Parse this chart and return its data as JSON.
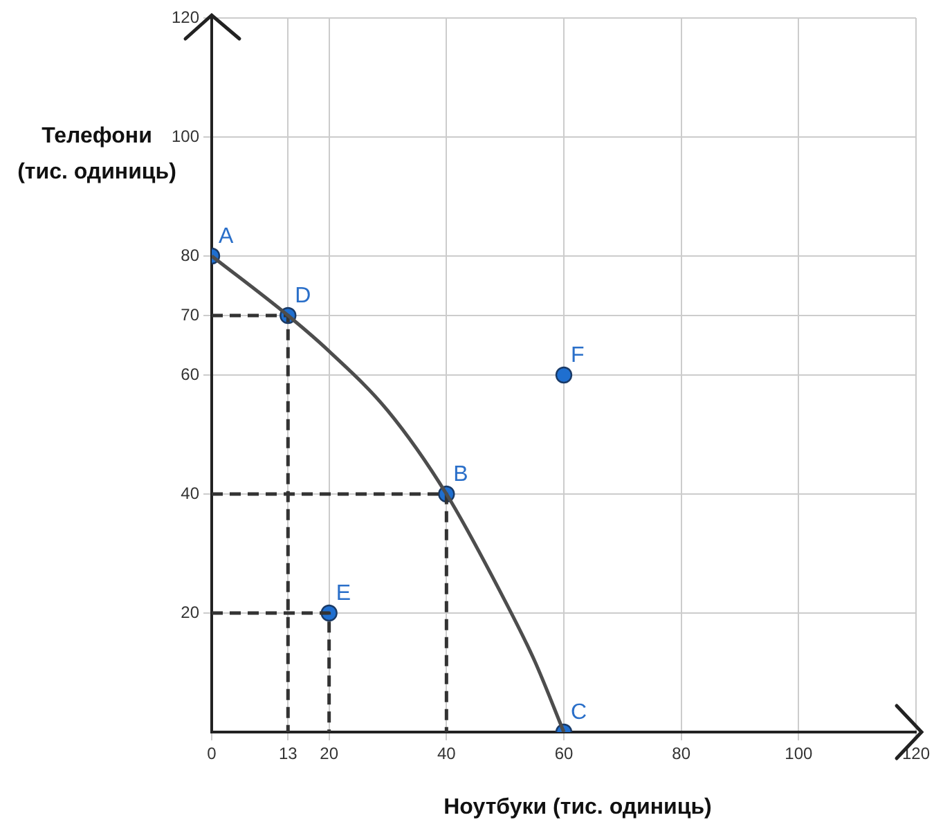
{
  "chart_data": {
    "type": "line",
    "xlabel": "Ноутбуки (тис. одиниць)",
    "ylabel": "Телефони (тис. одиниць)",
    "xlim": [
      0,
      120
    ],
    "ylim": [
      0,
      120
    ],
    "xticks": [
      0,
      13,
      20,
      40,
      60,
      80,
      100,
      120
    ],
    "yticks": [
      20,
      40,
      60,
      70,
      80,
      100,
      120
    ],
    "grid": true,
    "legend": false,
    "series": [
      {
        "color": "#4d4d4d",
        "x": [
          0,
          13,
          20,
          30,
          40,
          50,
          55,
          60
        ],
        "values": [
          80,
          70,
          64,
          54,
          40,
          22,
          12,
          0
        ],
        "marker": "none",
        "line_style": "solid"
      },
      {
        "color": "#333333",
        "x": [
          0,
          13,
          13
        ],
        "values": [
          70,
          70,
          0
        ],
        "marker": "none",
        "line_style": "dashed"
      },
      {
        "color": "#333333",
        "x": [
          0,
          40,
          40
        ],
        "values": [
          40,
          40,
          0
        ],
        "marker": "none",
        "line_style": "dashed"
      },
      {
        "color": "#333333",
        "x": [
          0,
          20,
          20
        ],
        "values": [
          20,
          20,
          0
        ],
        "marker": "none",
        "line_style": "dashed"
      },
      {
        "type": "scatter",
        "color": "#1f6fd0",
        "x": [
          0,
          13,
          40,
          60,
          20,
          60
        ],
        "values": [
          80,
          70,
          40,
          0,
          20,
          60
        ],
        "marker": "circle"
      }
    ],
    "annotations": [
      {
        "text": "A",
        "x": 0,
        "y": 80
      },
      {
        "text": "D",
        "x": 13,
        "y": 70
      },
      {
        "text": "B",
        "x": 40,
        "y": 40
      },
      {
        "text": "C",
        "x": 60,
        "y": 0
      },
      {
        "text": "E",
        "x": 20,
        "y": 20
      },
      {
        "text": "F",
        "x": 60,
        "y": 60
      }
    ]
  }
}
